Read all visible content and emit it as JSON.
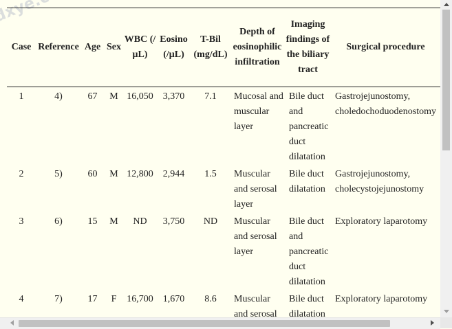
{
  "watermark": "dxye.com",
  "table": {
    "headers": {
      "case": "Case",
      "reference": "Reference",
      "age": "Age",
      "sex": "Sex",
      "wbc": "WBC (/μL)",
      "eosino": "Eosino (/μL)",
      "tbil": "T-Bil (mg/dL)",
      "depth": "Depth of eosinophilic infiltration",
      "imaging": "Imaging findings of the biliary tract",
      "surgical": "Surgical procedure"
    },
    "rows": [
      {
        "case": "1",
        "reference": "4)",
        "age": "67",
        "sex": "M",
        "wbc": "16,050",
        "eosino": "3,370",
        "tbil": "7.1",
        "depth": "Mucosal and muscular layer",
        "imaging": "Bile duct and pancreatic duct dilatation",
        "surgical": "Gastrojejunostomy, choledochoduodenostomy"
      },
      {
        "case": "2",
        "reference": "5)",
        "age": "60",
        "sex": "M",
        "wbc": "12,800",
        "eosino": "2,944",
        "tbil": "1.5",
        "depth": "Muscular and serosal layer",
        "imaging": "Bile duct dilatation",
        "surgical": "Gastrojejunostomy, cholecystojejunostomy"
      },
      {
        "case": "3",
        "reference": "6)",
        "age": "15",
        "sex": "M",
        "wbc": "ND",
        "eosino": "3,750",
        "tbil": "ND",
        "depth": "Muscular and serosal layer",
        "imaging": "Bile duct and pancreatic duct dilatation",
        "surgical": "Exploratory laparotomy"
      },
      {
        "case": "4",
        "reference": "7)",
        "age": "17",
        "sex": "F",
        "wbc": "16,700",
        "eosino": "1,670",
        "tbil": "8.6",
        "depth": "Muscular and serosal layer",
        "imaging": "Bile duct dilatation",
        "surgical": "Exploratory laparotomy"
      }
    ]
  }
}
